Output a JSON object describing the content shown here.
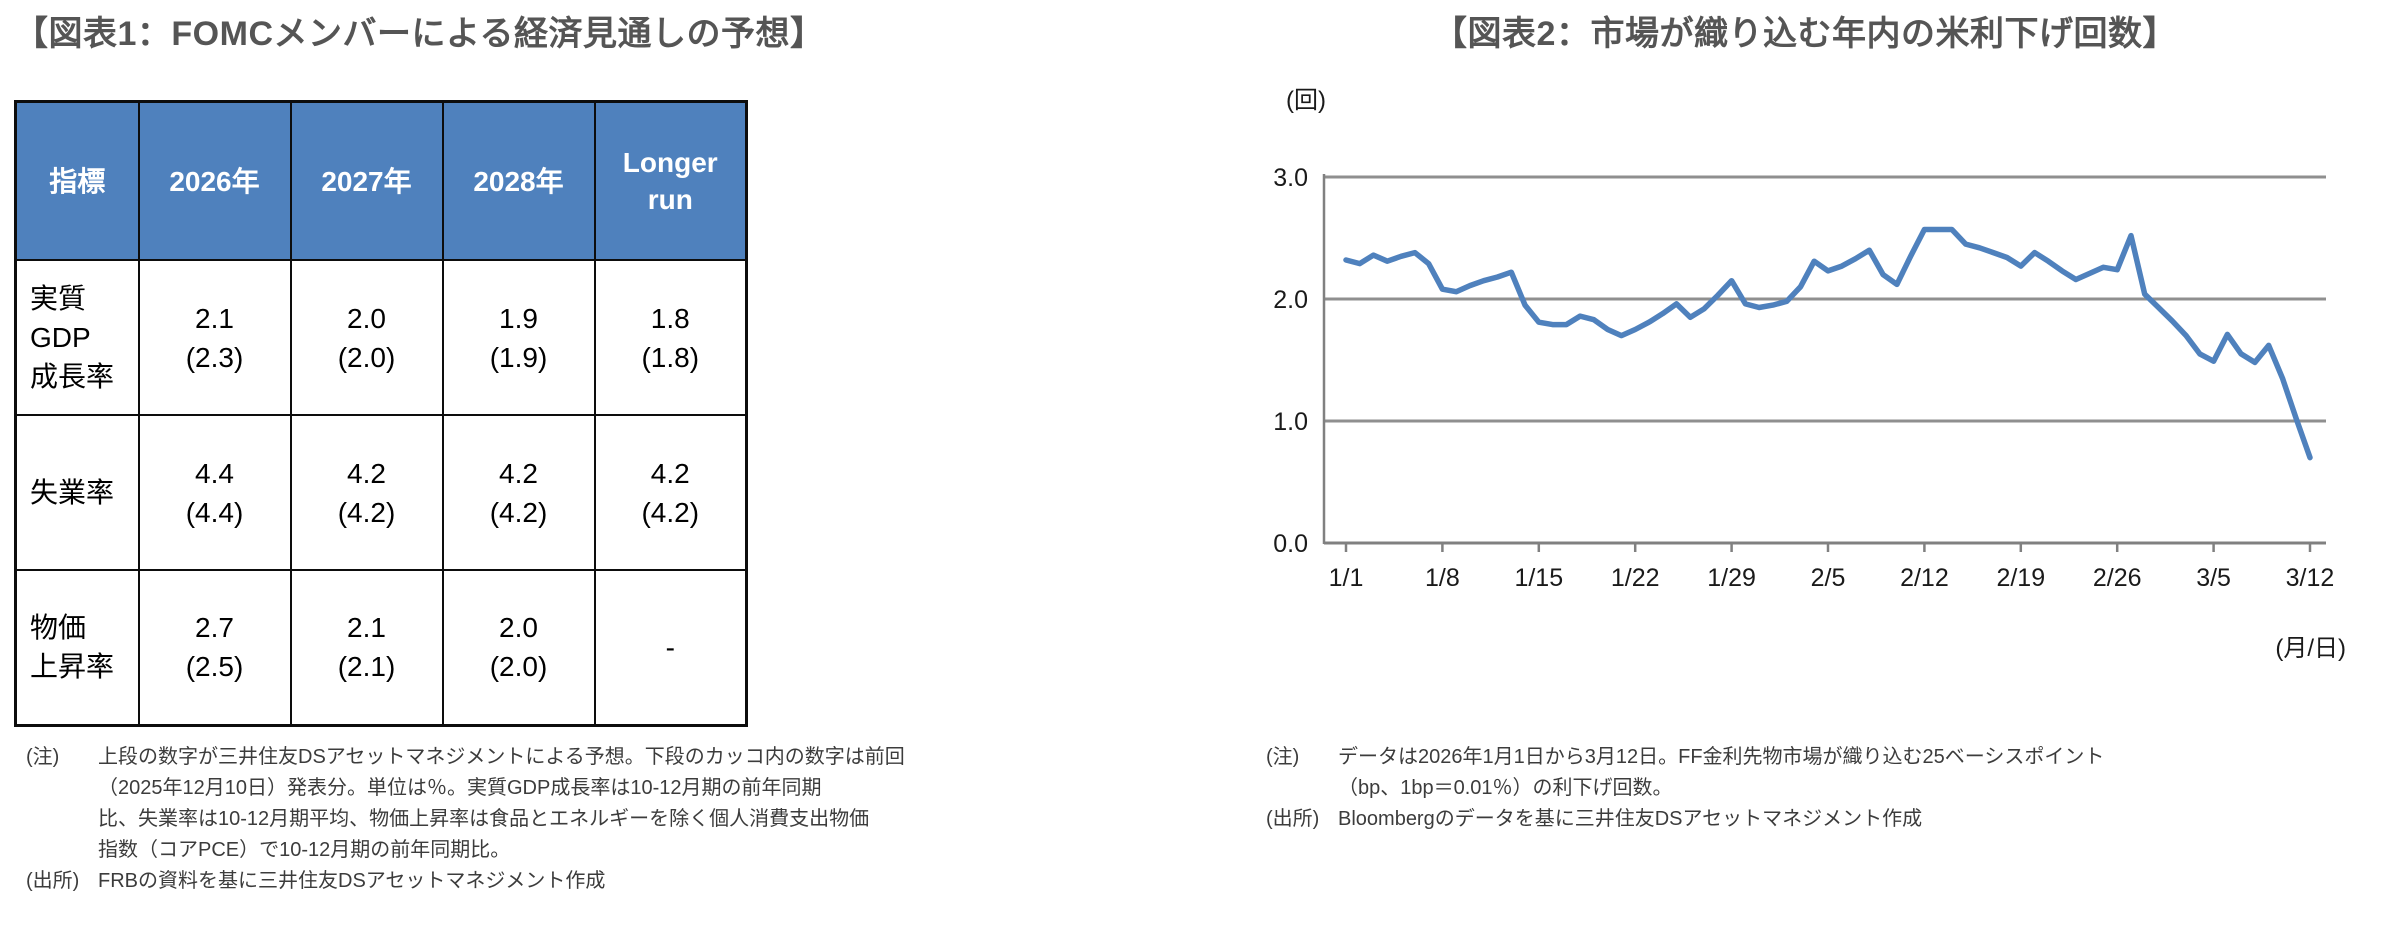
{
  "figure1": {
    "title": "【図表1：FOMCメンバーによる経済見通しの予想】",
    "table": {
      "header_cells": [
        "指標",
        "2026年",
        "2027年",
        "2028年",
        "Longer\nrun"
      ],
      "rows": [
        {
          "cells": [
            "実質GDP\n成長率",
            "2.1\n(2.3)",
            "2.0\n(2.0)",
            "1.9\n(1.9)",
            "1.8\n(1.8)"
          ]
        },
        {
          "cells": [
            "失業率",
            "4.4\n(4.4)",
            "4.2\n(4.2)",
            "4.2\n(4.2)",
            "4.2\n(4.2)"
          ]
        },
        {
          "cells": [
            "物価\n上昇率",
            "2.7\n(2.5)",
            "2.1\n(2.1)",
            "2.0\n(2.0)",
            "-"
          ]
        }
      ]
    },
    "note_label": "(注)",
    "note_text": "上段の数字が三井住友DSアセットマネジメントによる予想。下段のカッコ内の数字は前回\n（2025年12月10日）発表分。単位は％。実質GDP成長率は10-12月期の前年同期\n比、失業率は10-12月期平均、物価上昇率は食品とエネルギーを除く個人消費支出物価\n指数（コアPCE）で10-12月期の前年同期比。",
    "source_label": "(出所)",
    "source_text": "FRBの資料を基に三井住友DSアセットマネジメント作成"
  },
  "figure2": {
    "title": "【図表2：市場が織り込む年内の米利下げ回数】",
    "note_label": "(注)",
    "note_text": "データは2026年1月1日から3月12日。FF金利先物市場が織り込む25ベーシスポイント\n（bp、1bp＝0.01％）の利下げ回数。",
    "source_label": "(出所)",
    "source_text": "Bloombergのデータを基に三井住友DSアセットマネジメント作成"
  },
  "colors": {
    "accent_blue": "#4F81BD",
    "grid_gray": "#8f8f8f",
    "axis_gray": "#808080",
    "title_gray": "#555555",
    "table_border_black": "#0d0d0d"
  },
  "chart_data": [
    {
      "type": "table",
      "title": "FOMCメンバーによる経済見通しの予想",
      "columns": [
        "指標",
        "2026年",
        "2027年",
        "2028年",
        "Longer run"
      ],
      "rows": [
        [
          "実質GDP成長率",
          "2.1 (2.3)",
          "2.0 (2.0)",
          "1.9 (1.9)",
          "1.8 (1.8)"
        ],
        [
          "失業率",
          "4.4 (4.4)",
          "4.2 (4.2)",
          "4.2 (4.2)",
          "4.2 (4.2)"
        ],
        [
          "物価上昇率",
          "2.7 (2.5)",
          "2.1 (2.1)",
          "2.0 (2.0)",
          "-"
        ]
      ]
    },
    {
      "type": "line",
      "title": "市場が織り込む年内の米利下げ回数",
      "ylabel": "(回)",
      "xlabel": "(月/日)",
      "ylim": [
        0,
        3.0
      ],
      "y_ticks": [
        0.0,
        1.0,
        2.0,
        3.0
      ],
      "gridlines": [
        1.0,
        2.0,
        3.0
      ],
      "grid": "horizontal",
      "legend": "none",
      "line_color": "#4F81BD",
      "x_tick_every": 7,
      "x_ticks": [
        "1/1",
        "1/8",
        "1/15",
        "1/22",
        "1/29",
        "2/5",
        "2/12",
        "2/19",
        "2/26",
        "3/5",
        "3/12"
      ],
      "series": [
        {
          "name": "利下げ回数",
          "x": [
            "1/1",
            "1/2",
            "1/3",
            "1/4",
            "1/5",
            "1/6",
            "1/7",
            "1/8",
            "1/9",
            "1/10",
            "1/11",
            "1/12",
            "1/13",
            "1/14",
            "1/15",
            "1/16",
            "1/17",
            "1/18",
            "1/19",
            "1/20",
            "1/21",
            "1/22",
            "1/23",
            "1/24",
            "1/25",
            "1/26",
            "1/27",
            "1/28",
            "1/29",
            "1/30",
            "1/31",
            "2/1",
            "2/2",
            "2/3",
            "2/4",
            "2/5",
            "2/6",
            "2/7",
            "2/8",
            "2/9",
            "2/10",
            "2/11",
            "2/12",
            "2/13",
            "2/14",
            "2/15",
            "2/16",
            "2/17",
            "2/18",
            "2/19",
            "2/20",
            "2/21",
            "2/22",
            "2/23",
            "2/24",
            "2/25",
            "2/26",
            "2/27",
            "2/28",
            "3/1",
            "3/2",
            "3/3",
            "3/4",
            "3/5",
            "3/6",
            "3/7",
            "3/8",
            "3/9",
            "3/10",
            "3/11",
            "3/12"
          ],
          "values": [
            2.32,
            2.29,
            2.36,
            2.31,
            2.35,
            2.38,
            2.29,
            2.08,
            2.06,
            2.11,
            2.15,
            2.18,
            2.22,
            1.95,
            1.81,
            1.79,
            1.79,
            1.86,
            1.83,
            1.75,
            1.7,
            1.75,
            1.81,
            1.88,
            1.96,
            1.85,
            1.92,
            2.03,
            2.15,
            1.96,
            1.93,
            1.95,
            1.98,
            2.1,
            2.31,
            2.23,
            2.27,
            2.33,
            2.4,
            2.2,
            2.12,
            2.35,
            2.57,
            2.57,
            2.57,
            2.45,
            2.42,
            2.38,
            2.34,
            2.27,
            2.38,
            2.31,
            2.23,
            2.16,
            2.21,
            2.26,
            2.24,
            2.52,
            2.04,
            1.93,
            1.82,
            1.7,
            1.55,
            1.49,
            1.71,
            1.55,
            1.48,
            1.62,
            1.35,
            1.02,
            0.7
          ]
        }
      ]
    }
  ]
}
